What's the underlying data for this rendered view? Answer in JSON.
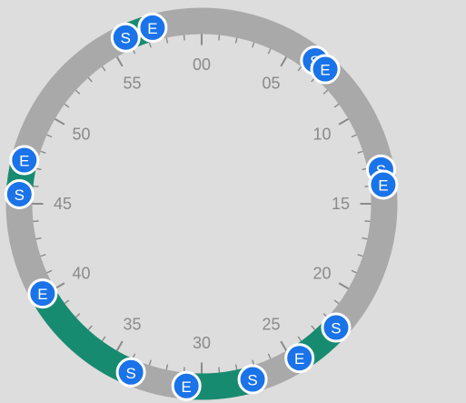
{
  "dial": {
    "minute_labels": [
      {
        "minute": 0,
        "text": "00"
      },
      {
        "minute": 5,
        "text": "05"
      },
      {
        "minute": 10,
        "text": "10"
      },
      {
        "minute": 15,
        "text": "15"
      },
      {
        "minute": 20,
        "text": "20"
      },
      {
        "minute": 25,
        "text": "25"
      },
      {
        "minute": 30,
        "text": "30"
      },
      {
        "minute": 35,
        "text": "35"
      },
      {
        "minute": 40,
        "text": "40"
      },
      {
        "minute": 45,
        "text": "45"
      },
      {
        "minute": 50,
        "text": "50"
      },
      {
        "minute": 55,
        "text": "55"
      }
    ],
    "ranges": [
      {
        "start_minute": 6.4,
        "end_minute": 7.1,
        "start_label": "S",
        "end_label": "E"
      },
      {
        "start_minute": 13.2,
        "end_minute": 14.0,
        "start_label": "S",
        "end_label": "E"
      },
      {
        "start_minute": 22.1,
        "end_minute": 24.6,
        "start_label": "S",
        "end_label": "E"
      },
      {
        "start_minute": 27.3,
        "end_minute": 30.8,
        "start_label": "S",
        "end_label": "E"
      },
      {
        "start_minute": 33.8,
        "end_minute": 40.1,
        "start_label": "S",
        "end_label": "E"
      },
      {
        "start_minute": 45.5,
        "end_minute": 47.3,
        "start_label": "S",
        "end_label": "E"
      },
      {
        "start_minute": 55.9,
        "end_minute": 57.4,
        "start_label": "S",
        "end_label": "E"
      }
    ]
  },
  "colors": {
    "ring": "#a9a9a9",
    "range": "#178b70",
    "tick": "#8a8a8a",
    "handle": "#1a73e8",
    "handle_border": "#ffffff"
  }
}
